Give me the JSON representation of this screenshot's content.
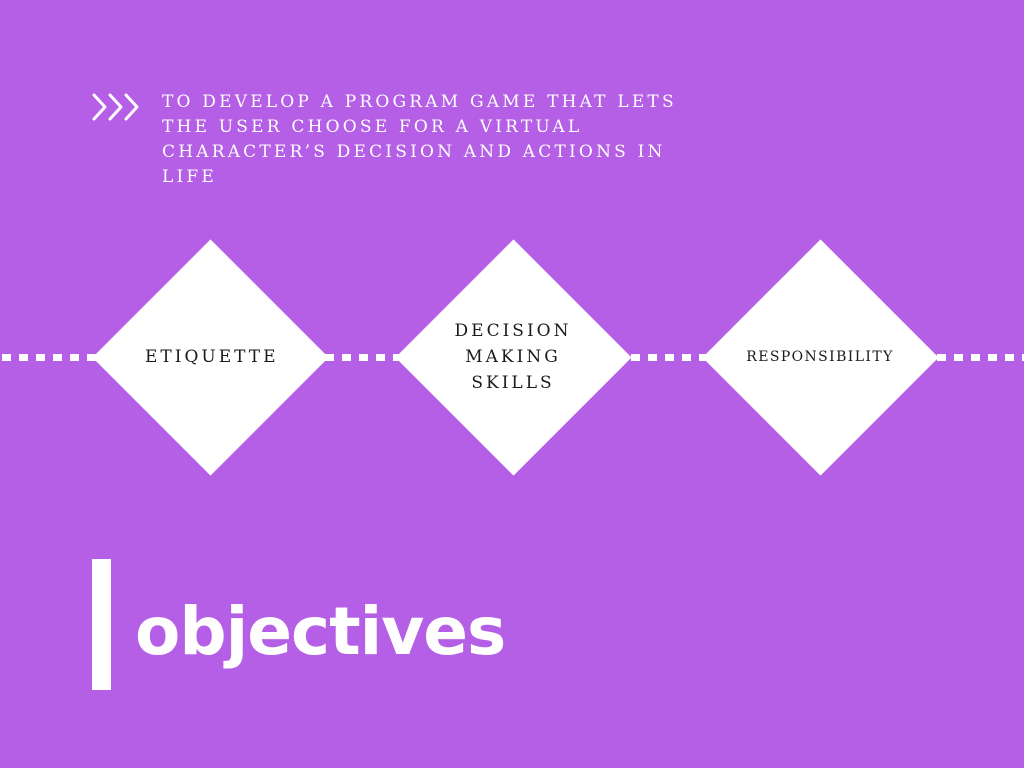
{
  "intro": {
    "text": "TO DEVELOP A PROGRAM GAME THAT LETS THE USER CHOOSE FOR A VIRTUAL CHARACTER’S DECISION AND ACTIONS IN LIFE",
    "icon": "triple-chevron-right-icon"
  },
  "diamonds": [
    {
      "label": "ETIQUETTE"
    },
    {
      "label": "DECISION MAKING SKILLS"
    },
    {
      "label": "RESPONSIBILITY"
    }
  ],
  "title": "objectives",
  "colors": {
    "background": "#b45fe5",
    "foreground": "#ffffff",
    "diamond_text": "#1a1a1a"
  }
}
